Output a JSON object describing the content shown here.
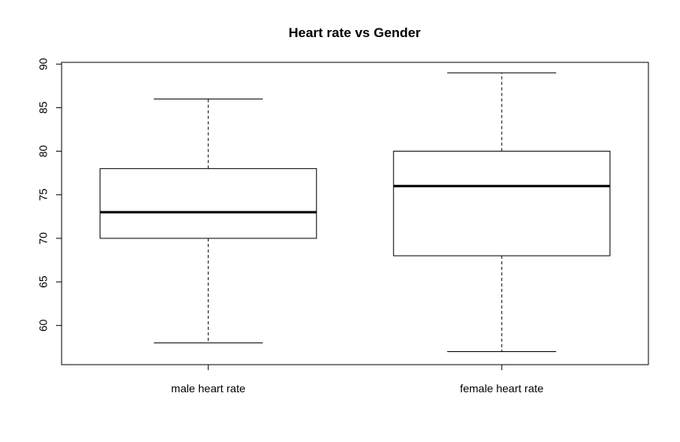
{
  "chart_data": {
    "type": "boxplot",
    "title": "Heart rate vs Gender",
    "xlabel": "",
    "ylabel": "",
    "ylim": [
      55.5,
      90.2
    ],
    "yticks": [
      60,
      65,
      70,
      75,
      80,
      85,
      90
    ],
    "categories": [
      "male heart rate",
      "female heart rate"
    ],
    "boxes": [
      {
        "min": 58,
        "q1": 70,
        "median": 73,
        "q3": 78,
        "max": 86
      },
      {
        "min": 57,
        "q1": 68,
        "median": 76,
        "q3": 80,
        "max": 89
      }
    ],
    "grid": false,
    "colors": {
      "box_stroke": "#000000",
      "median": "#000000",
      "background": "#ffffff"
    }
  }
}
